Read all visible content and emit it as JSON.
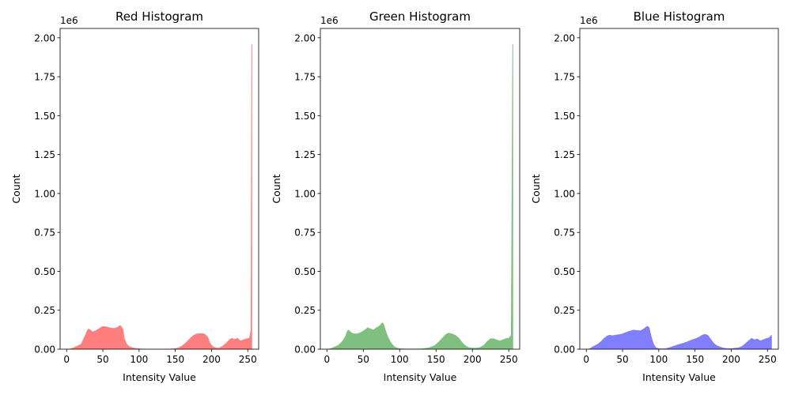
{
  "chart_data": [
    {
      "type": "area",
      "title": "Red Histogram",
      "xlabel": "Intensity Value",
      "ylabel": "Count",
      "offset_text": "1e6",
      "xlim": [
        -9,
        265
      ],
      "ylim": [
        0,
        2060000
      ],
      "xticks": [
        0,
        50,
        100,
        150,
        200,
        250
      ],
      "yticks": [
        0,
        250000,
        500000,
        750000,
        1000000,
        1250000,
        1500000,
        1750000,
        2000000
      ],
      "ytick_labels": [
        "0.00",
        "0.25",
        "0.50",
        "0.75",
        "1.00",
        "1.25",
        "1.50",
        "1.75",
        "2.00"
      ],
      "color": "#ff0000",
      "alpha": 0.5,
      "points": [
        [
          0,
          0
        ],
        [
          5,
          3000
        ],
        [
          10,
          12000
        ],
        [
          15,
          22000
        ],
        [
          20,
          35000
        ],
        [
          25,
          85000
        ],
        [
          28,
          120000
        ],
        [
          30,
          132000
        ],
        [
          33,
          125000
        ],
        [
          36,
          112000
        ],
        [
          40,
          120000
        ],
        [
          45,
          135000
        ],
        [
          50,
          148000
        ],
        [
          55,
          145000
        ],
        [
          60,
          138000
        ],
        [
          65,
          135000
        ],
        [
          70,
          142000
        ],
        [
          74,
          155000
        ],
        [
          78,
          130000
        ],
        [
          80,
          70000
        ],
        [
          83,
          35000
        ],
        [
          86,
          20000
        ],
        [
          90,
          12000
        ],
        [
          95,
          7000
        ],
        [
          100,
          4000
        ],
        [
          110,
          2000
        ],
        [
          120,
          2000
        ],
        [
          130,
          2000
        ],
        [
          140,
          2500
        ],
        [
          150,
          5000
        ],
        [
          155,
          12000
        ],
        [
          160,
          25000
        ],
        [
          165,
          45000
        ],
        [
          170,
          70000
        ],
        [
          175,
          90000
        ],
        [
          180,
          100000
        ],
        [
          185,
          102000
        ],
        [
          190,
          100000
        ],
        [
          195,
          80000
        ],
        [
          198,
          40000
        ],
        [
          202,
          18000
        ],
        [
          206,
          10000
        ],
        [
          210,
          8000
        ],
        [
          215,
          20000
        ],
        [
          220,
          40000
        ],
        [
          225,
          65000
        ],
        [
          228,
          72000
        ],
        [
          232,
          65000
        ],
        [
          236,
          72000
        ],
        [
          240,
          55000
        ],
        [
          244,
          62000
        ],
        [
          248,
          68000
        ],
        [
          252,
          72000
        ],
        [
          254,
          120000
        ],
        [
          255,
          1960000
        ]
      ]
    },
    {
      "type": "area",
      "title": "Green Histogram",
      "xlabel": "Intensity Value",
      "ylabel": "Count",
      "offset_text": "1e6",
      "xlim": [
        -9,
        265
      ],
      "ylim": [
        0,
        2060000
      ],
      "xticks": [
        0,
        50,
        100,
        150,
        200,
        250
      ],
      "yticks": [
        0,
        250000,
        500000,
        750000,
        1000000,
        1250000,
        1500000,
        1750000,
        2000000
      ],
      "ytick_labels": [
        "0.00",
        "0.25",
        "0.50",
        "0.75",
        "1.00",
        "1.25",
        "1.50",
        "1.75",
        "2.00"
      ],
      "color": "#008000",
      "alpha": 0.5,
      "points": [
        [
          0,
          0
        ],
        [
          5,
          5000
        ],
        [
          10,
          15000
        ],
        [
          15,
          25000
        ],
        [
          20,
          45000
        ],
        [
          25,
          80000
        ],
        [
          28,
          120000
        ],
        [
          30,
          125000
        ],
        [
          33,
          110000
        ],
        [
          37,
          100000
        ],
        [
          42,
          100000
        ],
        [
          47,
          110000
        ],
        [
          52,
          125000
        ],
        [
          56,
          140000
        ],
        [
          60,
          132000
        ],
        [
          64,
          125000
        ],
        [
          68,
          140000
        ],
        [
          72,
          150000
        ],
        [
          76,
          172000
        ],
        [
          78,
          165000
        ],
        [
          81,
          120000
        ],
        [
          84,
          80000
        ],
        [
          88,
          45000
        ],
        [
          92,
          20000
        ],
        [
          96,
          10000
        ],
        [
          100,
          5000
        ],
        [
          110,
          3000
        ],
        [
          120,
          3000
        ],
        [
          130,
          4000
        ],
        [
          140,
          10000
        ],
        [
          148,
          25000
        ],
        [
          153,
          45000
        ],
        [
          158,
          70000
        ],
        [
          163,
          95000
        ],
        [
          167,
          105000
        ],
        [
          172,
          100000
        ],
        [
          177,
          90000
        ],
        [
          182,
          70000
        ],
        [
          186,
          45000
        ],
        [
          190,
          25000
        ],
        [
          195,
          12000
        ],
        [
          200,
          9000
        ],
        [
          205,
          9000
        ],
        [
          210,
          12000
        ],
        [
          215,
          25000
        ],
        [
          220,
          50000
        ],
        [
          225,
          70000
        ],
        [
          230,
          68000
        ],
        [
          234,
          60000
        ],
        [
          238,
          55000
        ],
        [
          242,
          62000
        ],
        [
          246,
          70000
        ],
        [
          250,
          72000
        ],
        [
          253,
          90000
        ],
        [
          255,
          1960000
        ]
      ]
    },
    {
      "type": "area",
      "title": "Blue Histogram",
      "xlabel": "Intensity Value",
      "ylabel": "Count",
      "offset_text": "1e6",
      "xlim": [
        -9,
        265
      ],
      "ylim": [
        0,
        2060000
      ],
      "xticks": [
        0,
        50,
        100,
        150,
        200,
        250
      ],
      "yticks": [
        0,
        250000,
        500000,
        750000,
        1000000,
        1250000,
        1500000,
        1750000,
        2000000
      ],
      "ytick_labels": [
        "0.00",
        "0.25",
        "0.50",
        "0.75",
        "1.00",
        "1.25",
        "1.50",
        "1.75",
        "2.00"
      ],
      "color": "#0000ff",
      "alpha": 0.5,
      "points": [
        [
          0,
          0
        ],
        [
          4,
          3000
        ],
        [
          8,
          15000
        ],
        [
          12,
          25000
        ],
        [
          16,
          35000
        ],
        [
          20,
          50000
        ],
        [
          24,
          70000
        ],
        [
          28,
          85000
        ],
        [
          32,
          92000
        ],
        [
          36,
          88000
        ],
        [
          40,
          92000
        ],
        [
          45,
          95000
        ],
        [
          50,
          100000
        ],
        [
          55,
          110000
        ],
        [
          60,
          118000
        ],
        [
          65,
          125000
        ],
        [
          70,
          122000
        ],
        [
          75,
          120000
        ],
        [
          80,
          135000
        ],
        [
          84,
          150000
        ],
        [
          87,
          140000
        ],
        [
          90,
          80000
        ],
        [
          93,
          35000
        ],
        [
          96,
          12000
        ],
        [
          100,
          5000
        ],
        [
          105,
          4000
        ],
        [
          110,
          6000
        ],
        [
          115,
          12000
        ],
        [
          120,
          20000
        ],
        [
          125,
          28000
        ],
        [
          130,
          35000
        ],
        [
          135,
          42000
        ],
        [
          140,
          50000
        ],
        [
          145,
          60000
        ],
        [
          150,
          68000
        ],
        [
          155,
          78000
        ],
        [
          160,
          92000
        ],
        [
          164,
          98000
        ],
        [
          168,
          90000
        ],
        [
          172,
          65000
        ],
        [
          176,
          40000
        ],
        [
          180,
          25000
        ],
        [
          185,
          15000
        ],
        [
          190,
          8000
        ],
        [
          195,
          6000
        ],
        [
          200,
          6000
        ],
        [
          205,
          8000
        ],
        [
          210,
          10000
        ],
        [
          215,
          20000
        ],
        [
          220,
          40000
        ],
        [
          225,
          60000
        ],
        [
          228,
          72000
        ],
        [
          232,
          62000
        ],
        [
          236,
          68000
        ],
        [
          240,
          55000
        ],
        [
          244,
          62000
        ],
        [
          248,
          70000
        ],
        [
          252,
          75000
        ],
        [
          255,
          90000
        ]
      ]
    }
  ]
}
